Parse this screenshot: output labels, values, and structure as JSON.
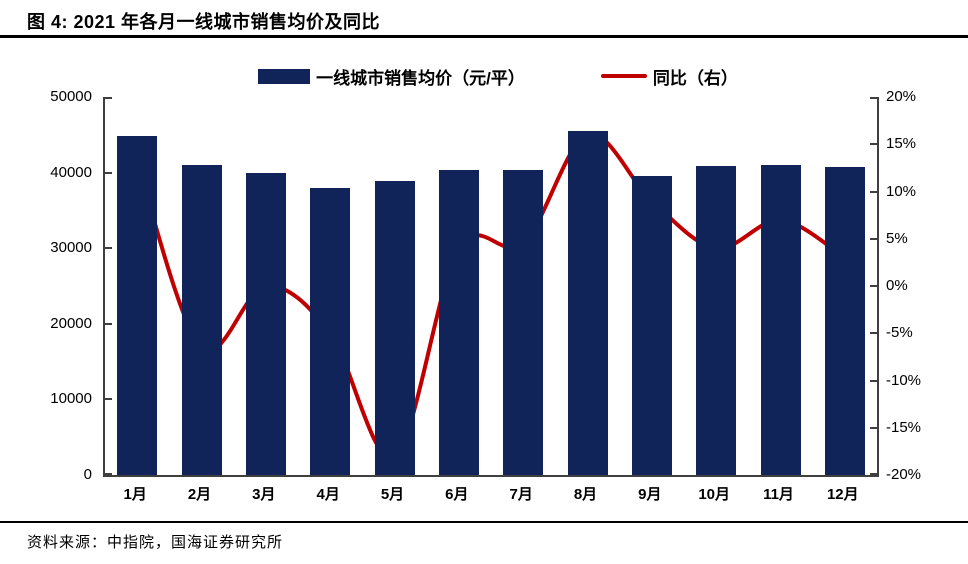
{
  "header": {
    "title": "图 4:  2021 年各月一线城市销售均价及同比"
  },
  "legend": {
    "items": [
      {
        "label": "一线城市销售均价（元/平）",
        "marker": "bar-swatch",
        "color": "#10245A"
      },
      {
        "label": "同比（右）",
        "marker": "line-swatch",
        "color": "#C00000"
      }
    ]
  },
  "footer": {
    "source": "资料来源：中指院，国海证券研究所"
  },
  "colors": {
    "bar": "#10245A",
    "line": "#C00000",
    "axis": "#3f3f3f",
    "rule": "#000000"
  },
  "chart_data": {
    "type": "bar",
    "subtype": "bar+line-dual-axis",
    "title": "2021 年各月一线城市销售均价及同比",
    "categories": [
      "1月",
      "2月",
      "3月",
      "4月",
      "5月",
      "6月",
      "7月",
      "8月",
      "9月",
      "10月",
      "11月",
      "12月"
    ],
    "series": [
      {
        "name": "一线城市销售均价（元/平）",
        "type": "bar",
        "axis": "left",
        "values": [
          44800,
          41000,
          40000,
          37900,
          38900,
          40400,
          40300,
          45500,
          39500,
          40900,
          41000,
          40800
        ]
      },
      {
        "name": "同比（右）",
        "type": "line",
        "axis": "right",
        "values_percent": [
          13,
          -6.5,
          0,
          -5,
          -18,
          4,
          4.5,
          16,
          9,
          4,
          7,
          3
        ]
      }
    ],
    "y_axis_left": {
      "min": 0,
      "max": 50000,
      "step": 10000,
      "tick_labels": [
        "50000",
        "40000",
        "30000",
        "20000",
        "10000",
        "0"
      ]
    },
    "y_axis_right": {
      "min": -20,
      "max": 20,
      "step": 5,
      "tick_labels": [
        "20%",
        "15%",
        "10%",
        "5%",
        "0%",
        "-5%",
        "-10%",
        "-15%",
        "-20%"
      ]
    },
    "grid": false,
    "legend_position": "top-center"
  }
}
